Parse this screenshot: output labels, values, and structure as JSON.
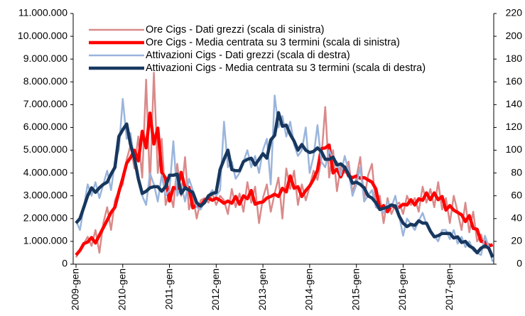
{
  "chart_data": {
    "type": "line",
    "categories": [
      "2009-gen",
      null,
      null,
      null,
      null,
      null,
      null,
      null,
      null,
      null,
      null,
      null,
      "2010-gen",
      null,
      null,
      null,
      null,
      null,
      null,
      null,
      null,
      null,
      null,
      null,
      "2011-gen",
      null,
      null,
      null,
      null,
      null,
      null,
      null,
      null,
      null,
      null,
      null,
      "2012-gen",
      null,
      null,
      null,
      null,
      null,
      null,
      null,
      null,
      null,
      null,
      null,
      "2013-gen",
      null,
      null,
      null,
      null,
      null,
      null,
      null,
      null,
      null,
      null,
      null,
      "2014-gen",
      null,
      null,
      null,
      null,
      null,
      null,
      null,
      null,
      null,
      null,
      null,
      "2015-gen",
      null,
      null,
      null,
      null,
      null,
      null,
      null,
      null,
      null,
      null,
      null,
      "2016-gen",
      null,
      null,
      null,
      null,
      null,
      null,
      null,
      null,
      null,
      null,
      null,
      "2017-gen",
      null,
      null,
      null,
      null,
      null,
      null,
      null,
      null,
      null,
      null,
      null
    ],
    "ylim": [
      0,
      11000000
    ],
    "yticks": [
      {
        "value": 0,
        "label": "0"
      },
      {
        "value": 1000000,
        "label": "1.000.000"
      },
      {
        "value": 2000000,
        "label": "2.000.000"
      },
      {
        "value": 3000000,
        "label": "3.000.000"
      },
      {
        "value": 4000000,
        "label": "4.000.000"
      },
      {
        "value": 5000000,
        "label": "5.000.000"
      },
      {
        "value": 6000000,
        "label": "6.000.000"
      },
      {
        "value": 7000000,
        "label": "7.000.000"
      },
      {
        "value": 8000000,
        "label": "8.000.000"
      },
      {
        "value": 9000000,
        "label": "9.000.000"
      },
      {
        "value": 10000000,
        "label": "10.000.000"
      },
      {
        "value": 11000000,
        "label": "11.000.000"
      }
    ],
    "y2lim": [
      0,
      220
    ],
    "y2ticks": [
      0,
      20,
      40,
      60,
      80,
      100,
      120,
      140,
      160,
      180,
      200,
      220
    ],
    "legend": "top-left",
    "series": [
      {
        "name": "Ore Cigs - Dati grezzi (scala di sinistra)",
        "color": "#d98a8a",
        "width": 2.5,
        "values": [
          300000,
          600000,
          900000,
          1200000,
          800000,
          1500000,
          500000,
          1800000,
          2500000,
          1500000,
          2800000,
          3200000,
          3500000,
          4600000,
          5200000,
          4200000,
          5600000,
          3800000,
          8100000,
          3400000,
          8400000,
          4000000,
          5500000,
          2600000,
          3200000,
          2500000,
          4400000,
          3000000,
          4700000,
          2400000,
          3000000,
          2000000,
          2800000,
          2900000,
          2700000,
          3100000,
          2600000,
          3000000,
          2800000,
          2200000,
          3300000,
          2500000,
          3100000,
          2300000,
          3600000,
          2700000,
          3400000,
          1800000,
          2900000,
          3500000,
          2300000,
          3100000,
          3800000,
          2000000,
          4200000,
          3300000,
          4100000,
          2600000,
          3500000,
          2800000,
          3400000,
          4100000,
          3700000,
          4600000,
          6900000,
          3800000,
          5000000,
          3200000,
          4300000,
          4000000,
          4500000,
          3100000,
          3800000,
          4700000,
          2800000,
          3900000,
          4400000,
          2500000,
          3000000,
          1800000,
          2900000,
          2200000,
          2600000,
          2700000,
          2200000,
          3000000,
          2600000,
          2900000,
          2300000,
          3400000,
          2700000,
          3300000,
          2500000,
          3600000,
          2400000,
          2900000,
          1800000,
          3000000,
          2300000,
          1500000,
          2700000,
          1400000,
          2300000,
          1000000,
          1300000,
          700000,
          900000,
          800000
        ]
      },
      {
        "name": "Ore Cigs - Media centrata su 3 termini (scala di sinistra)",
        "color": "#ff0000",
        "width": 4.5,
        "values": [
          400000,
          600000,
          900000,
          970000,
          1170000,
          930000,
          1270000,
          1600000,
          1930000,
          2270000,
          2500000,
          3170000,
          3770000,
          4430000,
          4670000,
          5000000,
          4530000,
          5830000,
          5100000,
          6630000,
          5270000,
          5970000,
          4030000,
          3770000,
          2770000,
          3370000,
          3300000,
          4030000,
          3370000,
          3370000,
          2470000,
          2600000,
          2570000,
          2800000,
          2900000,
          2800000,
          2900000,
          2800000,
          2670000,
          2770000,
          2670000,
          2970000,
          2630000,
          3000000,
          2870000,
          3230000,
          2630000,
          2700000,
          2730000,
          2900000,
          2970000,
          3070000,
          2970000,
          3330000,
          3170000,
          3870000,
          3330000,
          3400000,
          2970000,
          3230000,
          3430000,
          3730000,
          4130000,
          5070000,
          5100000,
          5230000,
          4000000,
          4170000,
          3830000,
          4270000,
          3870000,
          3800000,
          3870000,
          3770000,
          3800000,
          3700000,
          3600000,
          3300000,
          2430000,
          2570000,
          2300000,
          2570000,
          2500000,
          2500000,
          2630000,
          2600000,
          2830000,
          2600000,
          2870000,
          2800000,
          3130000,
          2830000,
          3130000,
          2830000,
          2970000,
          2370000,
          2570000,
          2370000,
          2270000,
          2170000,
          1870000,
          2130000,
          1570000,
          1530000,
          1000000,
          970000,
          800000,
          850000
        ]
      },
      {
        "name": "Attivazioni Cigs - Dati grezzi (scala di destra)",
        "color": "#9ab5dc",
        "width": 2.5,
        "axis": "y2",
        "values": [
          38,
          30,
          50,
          70,
          60,
          72,
          58,
          70,
          82,
          65,
          90,
          100,
          145,
          110,
          115,
          90,
          75,
          60,
          52,
          80,
          70,
          55,
          78,
          60,
          65,
          108,
          60,
          70,
          55,
          75,
          65,
          50,
          48,
          55,
          60,
          65,
          60,
          65,
          125,
          85,
          90,
          75,
          80,
          90,
          100,
          85,
          95,
          80,
          100,
          110,
          70,
          148,
          120,
          130,
          112,
          125,
          105,
          95,
          100,
          120,
          80,
          95,
          122,
          90,
          85,
          100,
          92,
          90,
          78,
          95,
          82,
          60,
          70,
          85,
          55,
          60,
          65,
          50,
          48,
          45,
          55,
          50,
          60,
          42,
          25,
          40,
          35,
          30,
          38,
          45,
          35,
          28,
          25,
          20,
          30,
          30,
          22,
          30,
          18,
          24,
          15,
          20,
          12,
          10,
          8,
          25,
          15,
          2
        ]
      },
      {
        "name": "Attivazioni Cigs - Media centrata su 3 termini (scala di destra)",
        "color": "#17375e",
        "width": 4.5,
        "axis": "y2",
        "values": [
          36,
          40,
          50,
          60,
          67,
          63,
          67,
          70,
          72,
          79,
          85,
          112,
          118,
          123,
          105,
          93,
          75,
          62,
          64,
          67,
          68,
          68,
          64,
          68,
          78,
          78,
          79,
          62,
          67,
          65,
          63,
          54,
          51,
          54,
          60,
          62,
          63,
          83,
          92,
          100,
          83,
          82,
          82,
          90,
          92,
          93,
          87,
          92,
          97,
          93,
          109,
          113,
          133,
          121,
          122,
          114,
          108,
          100,
          105,
          100,
          98,
          99,
          102,
          99,
          92,
          92,
          94,
          87,
          88,
          85,
          79,
          71,
          72,
          70,
          67,
          60,
          58,
          54,
          48,
          49,
          50,
          52,
          51,
          42,
          36,
          33,
          35,
          34,
          38,
          36,
          36,
          29,
          24,
          25,
          27,
          27,
          27,
          23,
          24,
          19,
          20,
          16,
          14,
          10,
          14,
          16,
          14,
          6
        ]
      }
    ]
  }
}
